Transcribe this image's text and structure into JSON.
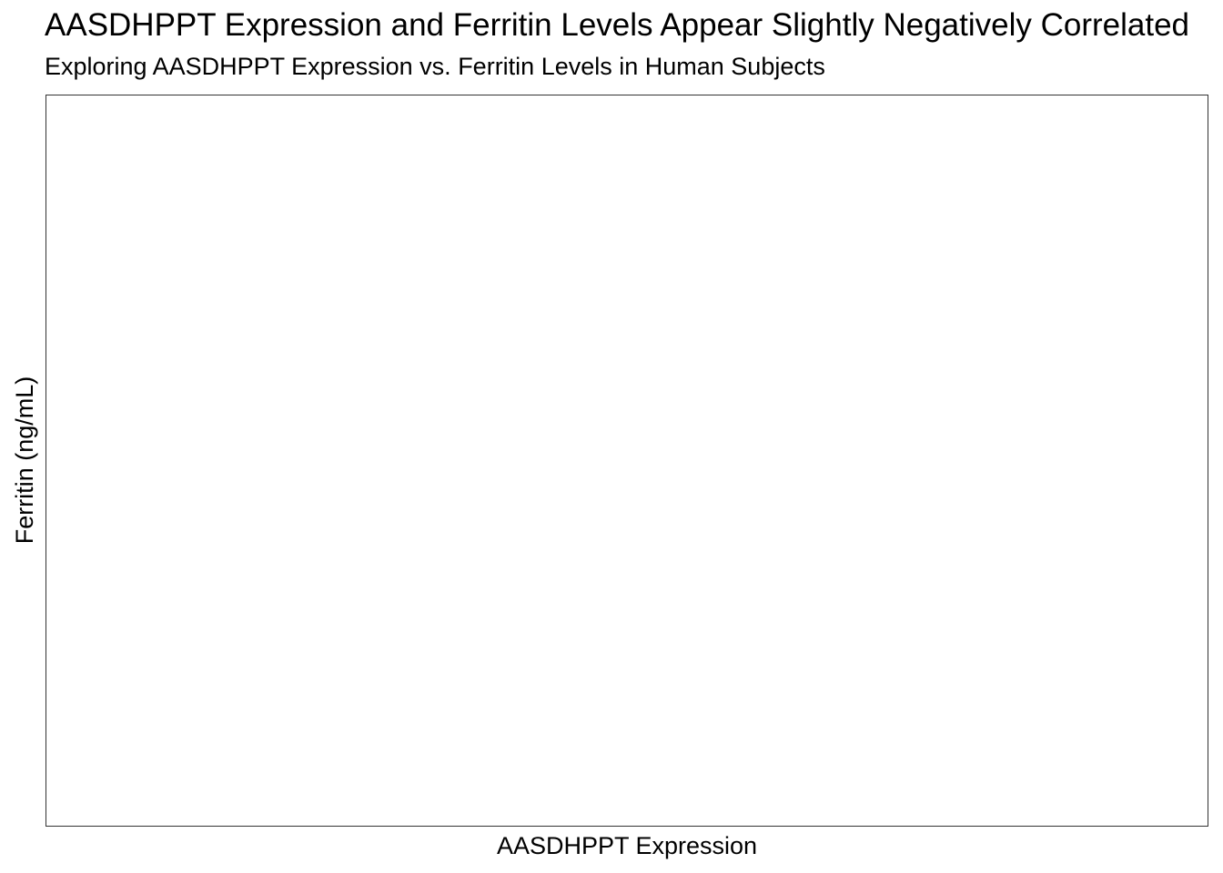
{
  "chart_data": {
    "type": "scatter",
    "title": "AASDHPPT Expression and Ferritin Levels Appear Slightly Negatively Correlated",
    "subtitle": "Exploring AASDHPPT Expression vs. Ferritin Levels in Human Subjects",
    "xlabel": "AASDHPPT Expression",
    "ylabel": "Ferritin (ng/mL)",
    "series": [
      {
        "x": [],
        "y": []
      }
    ],
    "grid": false,
    "legend": "none",
    "colors": {
      "panel_border": "#333333",
      "background": "#ffffff",
      "point": "#000000"
    }
  }
}
